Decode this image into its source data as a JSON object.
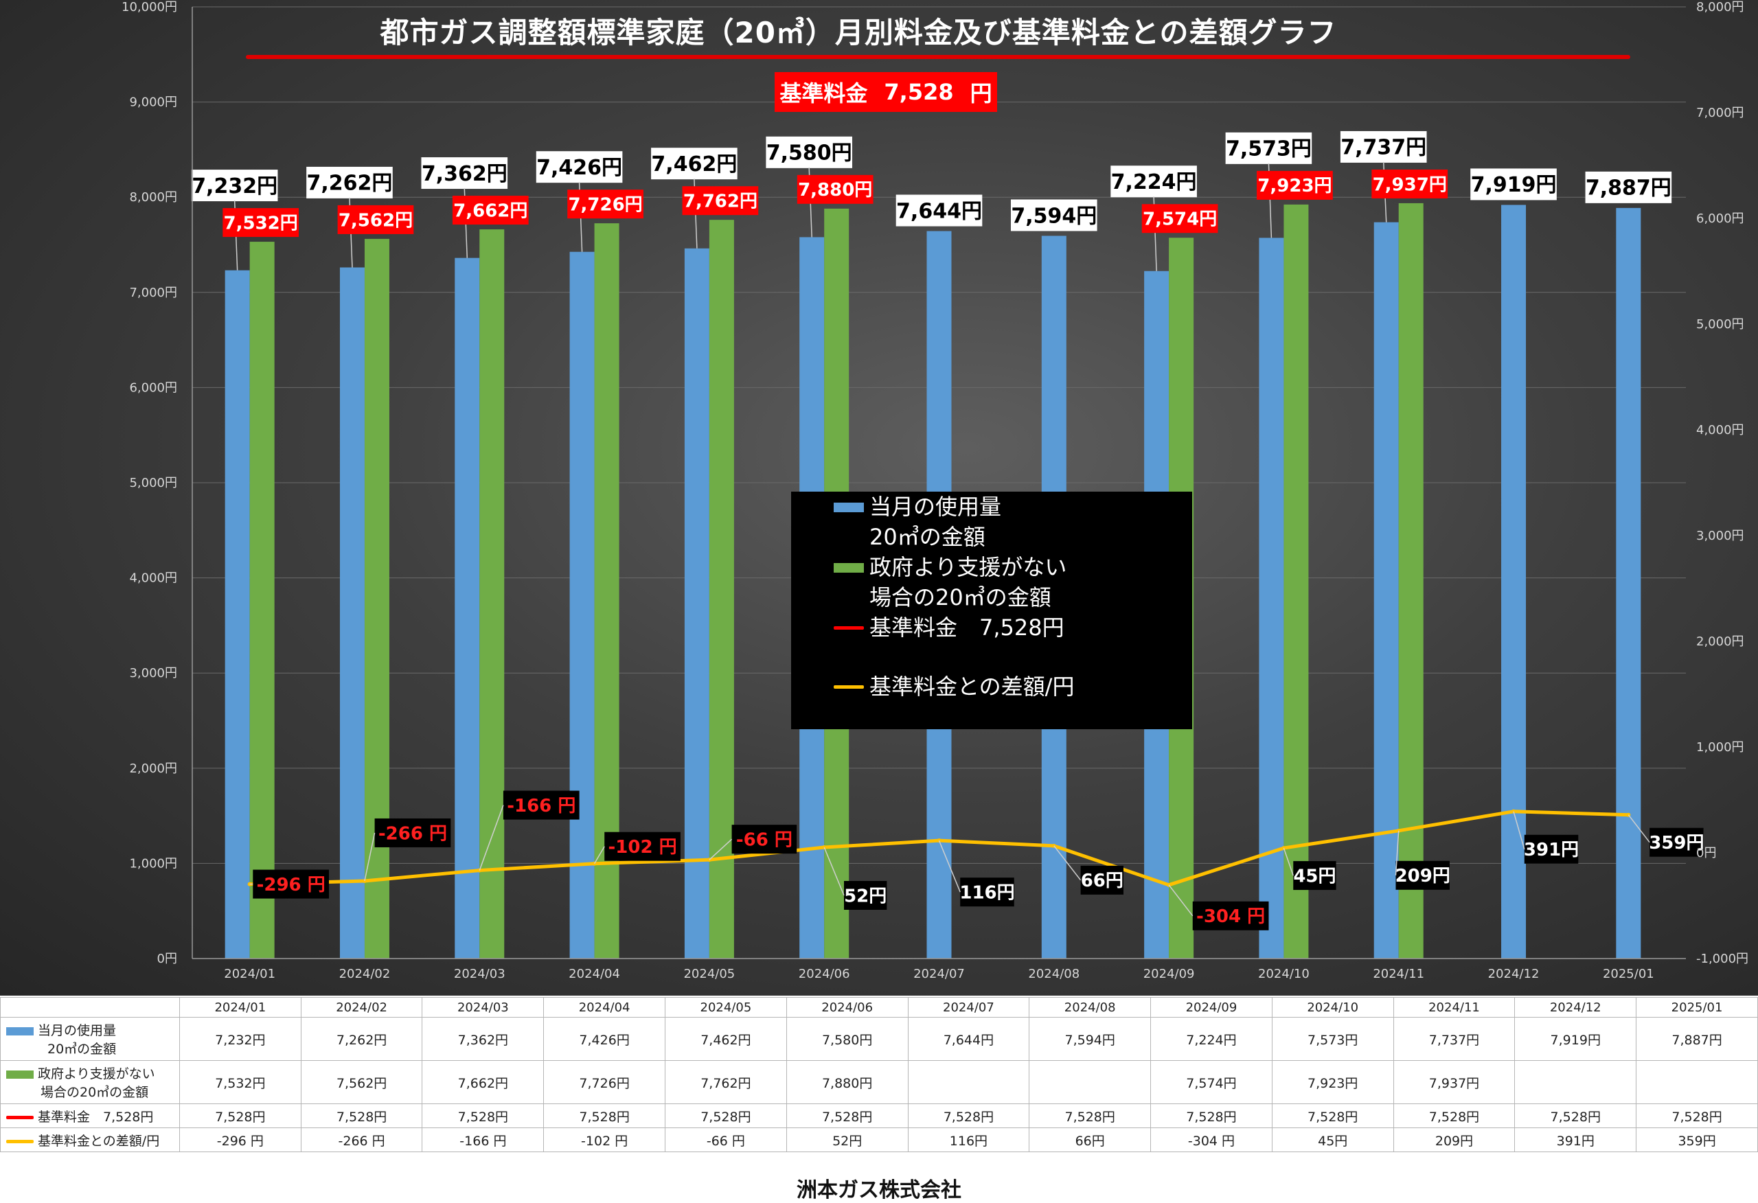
{
  "title": "都市ガス調整額標準家庭（20㎥）月別料金及び基準料金との差額グラフ",
  "standard_box": {
    "label": "基準料金",
    "value": "7,528",
    "unit": "円"
  },
  "legend": {
    "s1_line1": "当月の使用量",
    "s1_line2": "20㎥の金額",
    "s2_line1": "政府より支援がない",
    "s2_line2": "場合の20㎥の金額",
    "s3": "基準料金　7,528円",
    "s4": "基準料金との差額/円"
  },
  "colors": {
    "blue": "#5b9bd5",
    "green": "#70ad47",
    "red": "#ff0000",
    "yellow": "#ffc000"
  },
  "chart_data": {
    "type": "bar",
    "categories": [
      "2024/01",
      "2024/02",
      "2024/03",
      "2024/04",
      "2024/05",
      "2024/06",
      "2024/07",
      "2024/08",
      "2024/09",
      "2024/10",
      "2024/11",
      "2024/12",
      "2025/01"
    ],
    "left_axis": {
      "ylim": [
        0,
        10000
      ],
      "ticks": [
        "0円",
        "1,000円",
        "2,000円",
        "3,000円",
        "4,000円",
        "5,000円",
        "6,000円",
        "7,000円",
        "8,000円",
        "9,000円",
        "10,000円"
      ]
    },
    "right_axis": {
      "ylim": [
        -1000,
        8000
      ],
      "ticks": [
        "-1,000円",
        "0円",
        "1,000円",
        "2,000円",
        "3,000円",
        "4,000円",
        "5,000円",
        "6,000円",
        "7,000円",
        "8,000円"
      ]
    },
    "series": [
      {
        "name": "当月の使用量 20㎥の金額",
        "axis": "left",
        "kind": "bar",
        "values": [
          7232,
          7262,
          7362,
          7426,
          7462,
          7580,
          7644,
          7594,
          7224,
          7573,
          7737,
          7919,
          7887
        ],
        "labels": [
          "7,232円",
          "7,262円",
          "7,362円",
          "7,426円",
          "7,462円",
          "7,580円",
          "7,644円",
          "7,594円",
          "7,224円",
          "7,573円",
          "7,737円",
          "7,919円",
          "7,887円"
        ]
      },
      {
        "name": "政府より支援がない 場合の20㎥の金額",
        "axis": "left",
        "kind": "bar",
        "values": [
          7532,
          7562,
          7662,
          7726,
          7762,
          7880,
          null,
          null,
          7574,
          7923,
          7937,
          null,
          null
        ],
        "labels": [
          "7,532円",
          "7,562円",
          "7,662円",
          "7,726円",
          "7,762円",
          "7,880円",
          "",
          "",
          "7,574円",
          "7,923円",
          "7,937円",
          "",
          ""
        ]
      },
      {
        "name": "基準料金との差額/円",
        "axis": "right",
        "kind": "line",
        "values": [
          -296,
          -266,
          -166,
          -102,
          -66,
          52,
          116,
          66,
          -304,
          45,
          209,
          391,
          359
        ],
        "labels": [
          "-296 円",
          "-266 円",
          "-166 円",
          "-102 円",
          "-66 円",
          "52円",
          "116円",
          "66円",
          "-304 円",
          "45円",
          "209円",
          "391円",
          "359円"
        ]
      }
    ]
  },
  "table": {
    "header": [
      "2024/01",
      "2024/02",
      "2024/03",
      "2024/04",
      "2024/05",
      "2024/06",
      "2024/07",
      "2024/08",
      "2024/09",
      "2024/10",
      "2024/11",
      "2024/12",
      "2025/01"
    ],
    "rows": [
      {
        "label1": "当月の使用量",
        "label2": "20㎥の金額",
        "cells": [
          "7,232円",
          "7,262円",
          "7,362円",
          "7,426円",
          "7,462円",
          "7,580円",
          "7,644円",
          "7,594円",
          "7,224円",
          "7,573円",
          "7,737円",
          "7,919円",
          "7,887円"
        ]
      },
      {
        "label1": "政府より支援がない",
        "label2": "場合の20㎥の金額",
        "cells": [
          "7,532円",
          "7,562円",
          "7,662円",
          "7,726円",
          "7,762円",
          "7,880円",
          "",
          "",
          "7,574円",
          "7,923円",
          "7,937円",
          "",
          ""
        ]
      },
      {
        "label1": "基準料金　7,528円",
        "label2": "",
        "cells": [
          "7,528円",
          "7,528円",
          "7,528円",
          "7,528円",
          "7,528円",
          "7,528円",
          "7,528円",
          "7,528円",
          "7,528円",
          "7,528円",
          "7,528円",
          "7,528円",
          "7,528円"
        ]
      },
      {
        "label1": "基準料金との差額/円",
        "label2": "",
        "cells": [
          "-296 円",
          "-266 円",
          "-166 円",
          "-102 円",
          "-66 円",
          "52円",
          "116円",
          "66円",
          "-304 円",
          "45円",
          "209円",
          "391円",
          "359円"
        ]
      }
    ]
  },
  "footer": "洲本ガス株式会社"
}
